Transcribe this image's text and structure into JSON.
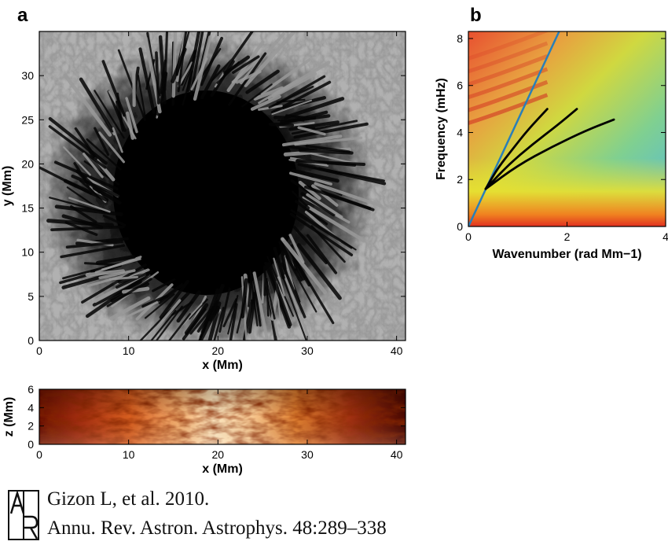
{
  "figure": {
    "panel_a_label": "a",
    "panel_b_label": "b",
    "citation_line1": "Gizon L, et al. 2010.",
    "citation_line2": "Annu. Rev. Astron. Astrophys. 48:289–338",
    "logo_letters": "AR"
  },
  "chart_data": [
    {
      "type": "heatmap",
      "id": "sunspot-intensity",
      "title": "",
      "xlabel": "x (Mm)",
      "ylabel": "y (Mm)",
      "xlim": [
        0,
        41
      ],
      "ylim": [
        0,
        35
      ],
      "xticks": [
        0,
        10,
        20,
        30,
        40
      ],
      "yticks": [
        0,
        5,
        10,
        15,
        20,
        25,
        30
      ],
      "xtick_labels": [
        "0",
        "10",
        "20",
        "30",
        "40"
      ],
      "ytick_labels": [
        "0",
        "5",
        "10",
        "15",
        "20",
        "25",
        "30"
      ],
      "colormap": "grayscale",
      "features": {
        "umbra_center": [
          19,
          17
        ],
        "umbra_radius_mm": 8,
        "penumbra_outer_radius_mm": 14
      }
    },
    {
      "type": "heatmap",
      "id": "vertical-slice",
      "xlabel": "x (Mm)",
      "ylabel": "z (Mm)",
      "xlim": [
        0,
        41
      ],
      "ylim": [
        0,
        6
      ],
      "xticks": [
        0,
        10,
        20,
        30,
        40
      ],
      "yticks": [
        0,
        2,
        4,
        6
      ],
      "xtick_labels": [
        "0",
        "10",
        "20",
        "30",
        "40"
      ],
      "ytick_labels": [
        "0",
        "2",
        "4",
        "6"
      ],
      "colormap": "hot",
      "colors": {
        "dark": "#5a0a00",
        "mid": "#c84a10",
        "bright": "#fff0d0"
      }
    },
    {
      "type": "heatmap",
      "id": "power-spectrum",
      "xlabel": "Wavenumber (rad Mm−1)",
      "ylabel": "Frequency (mHz)",
      "xlim": [
        0,
        4
      ],
      "ylim": [
        0,
        8.3
      ],
      "xticks": [
        0,
        2,
        4
      ],
      "yticks": [
        0,
        2,
        4,
        6,
        8
      ],
      "xtick_labels": [
        "0",
        "2",
        "4"
      ],
      "ytick_labels": [
        "0",
        "2",
        "4",
        "6",
        "8"
      ],
      "colormap": "jet-like",
      "colors": {
        "low": "#5ab8e0",
        "mid": "#d8e030",
        "high": "#e02820"
      },
      "series": [
        {
          "name": "Lamb line",
          "color": "#2a7fb8",
          "x": [
            0,
            1.84
          ],
          "y": [
            0,
            8.3
          ]
        },
        {
          "name": "ridge 1",
          "color": "#000000",
          "x": [
            0.35,
            0.6,
            0.9,
            1.2,
            1.6
          ],
          "y": [
            1.6,
            2.5,
            3.3,
            4.1,
            5.0
          ]
        },
        {
          "name": "ridge 2",
          "color": "#000000",
          "x": [
            0.35,
            0.8,
            1.3,
            1.8,
            2.2
          ],
          "y": [
            1.6,
            2.6,
            3.5,
            4.3,
            5.0
          ]
        },
        {
          "name": "ridge 3",
          "color": "#000000",
          "x": [
            0.35,
            1.0,
            1.7,
            2.4,
            2.95
          ],
          "y": [
            1.6,
            2.6,
            3.4,
            4.1,
            4.55
          ]
        }
      ]
    }
  ]
}
